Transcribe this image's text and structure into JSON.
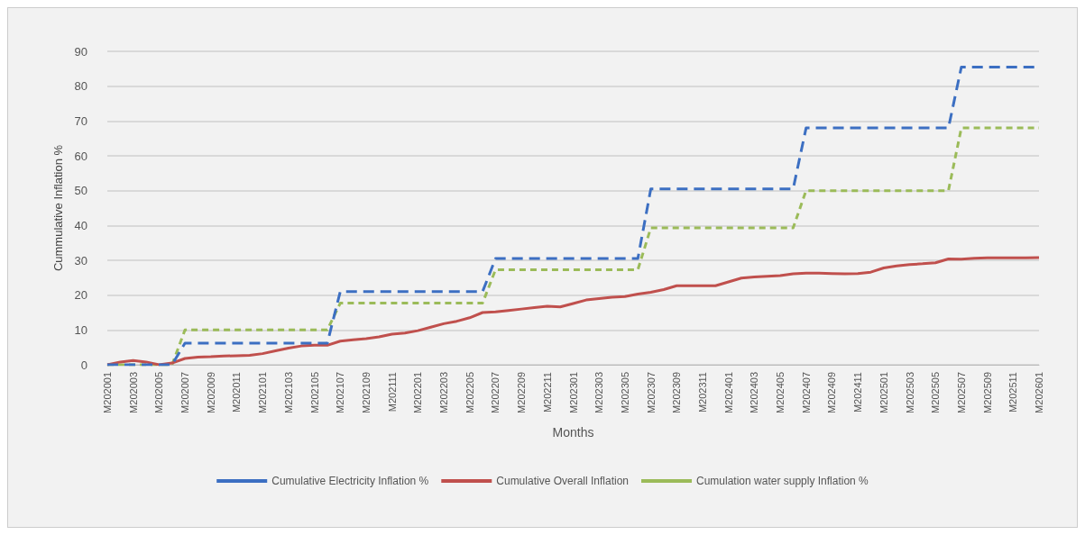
{
  "chart_data": {
    "type": "line",
    "xlabel": "Months",
    "ylabel": "Cummulative Inflation %",
    "categories": [
      "M202001",
      null,
      "M202003",
      null,
      "M202005",
      null,
      "M202007",
      null,
      "M202009",
      null,
      "M202011",
      null,
      "M202101",
      null,
      "M202103",
      null,
      "M202105",
      null,
      "M202107",
      null,
      "M202109",
      null,
      "M202111",
      null,
      "M202201",
      null,
      "M202203",
      null,
      "M202205",
      null,
      "M202207",
      null,
      "M202209",
      null,
      "M202211",
      null,
      "M202301",
      null,
      "M202303",
      null,
      "M202305",
      null,
      "M202307",
      null,
      "M202309",
      null,
      "M202311",
      null,
      "M202401",
      null,
      "M202403",
      null,
      "M202405",
      null,
      "M202407",
      null,
      "M202409",
      null,
      "M202411",
      null,
      "M202501",
      null,
      "M202503",
      null,
      "M202505",
      null,
      "M202507",
      null,
      "M202509",
      null,
      "M202511",
      null,
      "M202601"
    ],
    "series": [
      {
        "name": "Cumulative Electricity Inflation %",
        "color": "#3c6fc2",
        "line_style": "dashed",
        "values": [
          0,
          0,
          0,
          0,
          0,
          0,
          6.2,
          6.2,
          6.2,
          6.2,
          6.2,
          6.2,
          6.2,
          6.2,
          6.2,
          6.2,
          6.2,
          6.2,
          21,
          21,
          21,
          21,
          21,
          21,
          21,
          21,
          21,
          21,
          21,
          21,
          30.5,
          30.5,
          30.5,
          30.5,
          30.5,
          30.5,
          30.5,
          30.5,
          30.5,
          30.5,
          30.5,
          30.5,
          50.5,
          50.5,
          50.5,
          50.5,
          50.5,
          50.5,
          50.5,
          50.5,
          50.5,
          50.5,
          50.5,
          50.5,
          68,
          68,
          68,
          68,
          68,
          68,
          68,
          68,
          68,
          68,
          68,
          68,
          85.5,
          85.5,
          85.5,
          85.5,
          85.5,
          85.5,
          85.5
        ]
      },
      {
        "name": "Cumulative Overall Inflation",
        "color": "#c0504d",
        "line_style": "solid",
        "values": [
          0,
          0.8,
          1.2,
          0.8,
          0,
          0.5,
          1.8,
          2.2,
          2.3,
          2.5,
          2.6,
          2.7,
          3.2,
          4.0,
          4.8,
          5.4,
          5.6,
          5.6,
          6.8,
          7.2,
          7.5,
          8.0,
          8.8,
          9.1,
          9.8,
          10.8,
          11.8,
          12.5,
          13.5,
          15.0,
          15.2,
          15.6,
          16.0,
          16.4,
          16.8,
          16.6,
          17.6,
          18.6,
          19.0,
          19.4,
          19.6,
          20.3,
          20.8,
          21.6,
          22.7,
          22.7,
          22.7,
          22.7,
          23.8,
          24.9,
          25.2,
          25.4,
          25.6,
          26.1,
          26.3,
          26.3,
          26.2,
          26.1,
          26.2,
          26.6,
          27.8,
          28.4,
          28.8,
          29.0,
          29.3,
          30.4,
          30.3,
          30.6,
          30.7,
          30.7,
          30.7,
          30.7,
          30.8
        ]
      },
      {
        "name": "Cumulation water supply Inflation %",
        "color": "#9bbb59",
        "line_style": "dotted",
        "values": [
          0,
          0,
          0,
          0,
          0,
          0,
          10,
          10,
          10,
          10,
          10,
          10,
          10,
          10,
          10,
          10,
          10,
          10,
          17.7,
          17.7,
          17.7,
          17.7,
          17.7,
          17.7,
          17.7,
          17.7,
          17.7,
          17.7,
          17.7,
          17.7,
          27.3,
          27.3,
          27.3,
          27.3,
          27.3,
          27.3,
          27.3,
          27.3,
          27.3,
          27.3,
          27.3,
          27.3,
          39.3,
          39.3,
          39.3,
          39.3,
          39.3,
          39.3,
          39.3,
          39.3,
          39.3,
          39.3,
          39.3,
          39.3,
          50,
          50,
          50,
          50,
          50,
          50,
          50,
          50,
          50,
          50,
          50,
          50,
          68,
          68,
          68,
          68,
          68,
          68,
          68
        ]
      }
    ],
    "ylim": [
      0,
      90
    ],
    "yticks": [
      0,
      10,
      20,
      30,
      40,
      50,
      60,
      70,
      80,
      90
    ],
    "grid": "y",
    "legend": "bottom",
    "marker": "none"
  }
}
